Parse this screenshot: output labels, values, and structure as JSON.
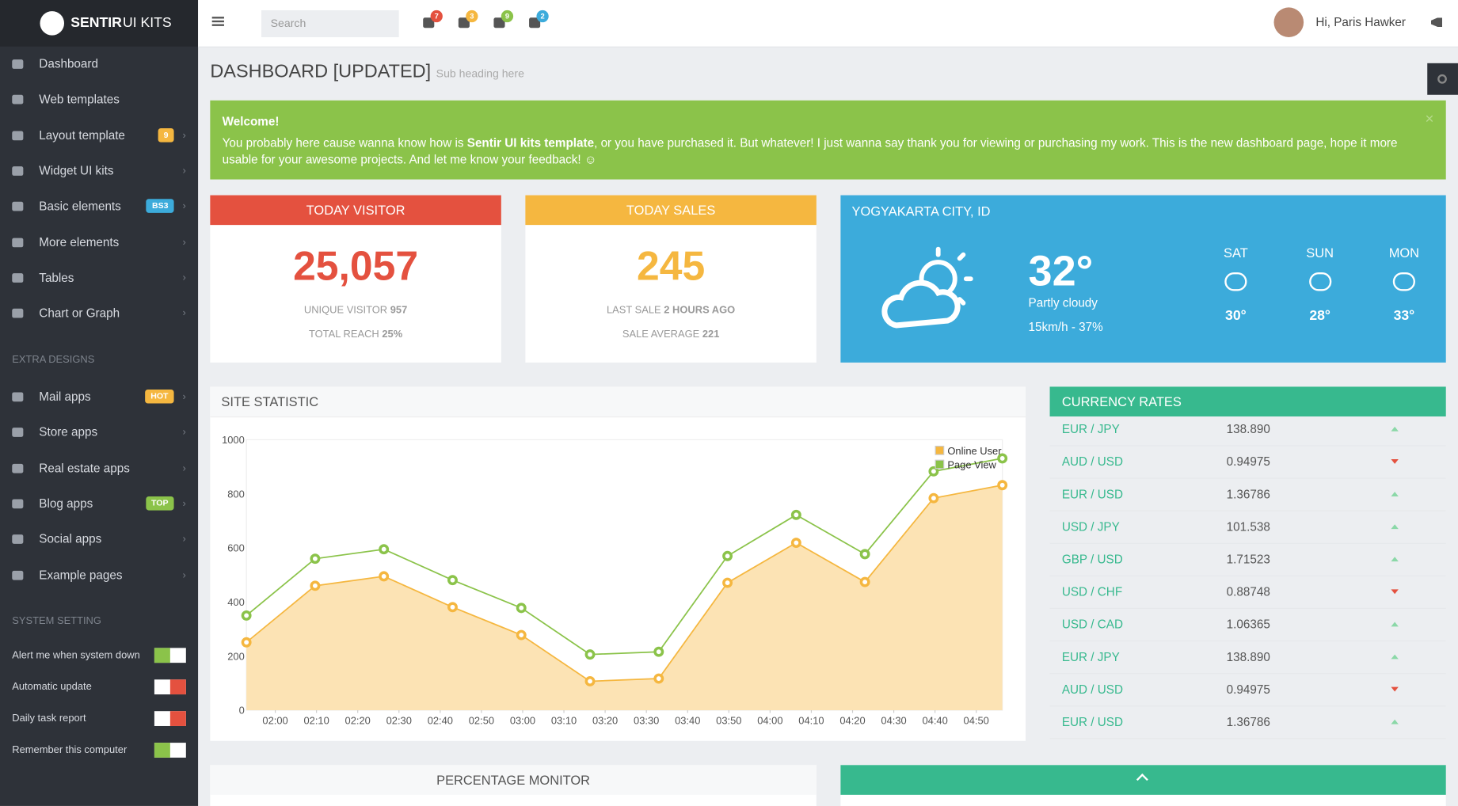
{
  "sidebar": {
    "brand_bold": "SENTIR",
    "brand_light": "UI KITS",
    "menu": [
      {
        "label": "Dashboard",
        "arrow": false
      },
      {
        "label": "Web templates",
        "arrow": false
      },
      {
        "label": "Layout template",
        "badge": "9",
        "badge_color": "#f5b740",
        "arrow": true
      },
      {
        "label": "Widget UI kits",
        "arrow": true
      },
      {
        "label": "Basic elements",
        "badge": "BS3",
        "badge_color": "#3cabdb",
        "arrow": true
      },
      {
        "label": "More elements",
        "arrow": true
      },
      {
        "label": "Tables",
        "arrow": true
      },
      {
        "label": "Chart or Graph",
        "arrow": true
      }
    ],
    "extra_heading": "EXTRA DESIGNS",
    "extra_menu": [
      {
        "label": "Mail apps",
        "badge": "HOT",
        "badge_color": "#f5b740",
        "arrow": true
      },
      {
        "label": "Store apps",
        "arrow": true
      },
      {
        "label": "Real estate apps",
        "arrow": true
      },
      {
        "label": "Blog apps",
        "badge": "TOP",
        "badge_color": "#8bc34a",
        "arrow": true
      },
      {
        "label": "Social apps",
        "arrow": true
      },
      {
        "label": "Example pages",
        "arrow": true
      }
    ],
    "settings_heading": "SYSTEM SETTING",
    "settings": [
      {
        "label": "Alert me when system down",
        "on": true
      },
      {
        "label": "Automatic update",
        "on": false
      },
      {
        "label": "Daily task report",
        "on": false
      },
      {
        "label": "Remember this computer",
        "on": true
      }
    ]
  },
  "header": {
    "search_placeholder": "Search",
    "notifications": [
      {
        "count": "7",
        "color": "#e4513f"
      },
      {
        "count": "3",
        "color": "#f5b740"
      },
      {
        "count": "9",
        "color": "#8bc34a"
      },
      {
        "count": "2",
        "color": "#3cabdb"
      }
    ],
    "greeting": "Hi, Paris Hawker"
  },
  "page": {
    "title": "DASHBOARD [UPDATED]",
    "subtitle": "Sub heading here"
  },
  "alert": {
    "heading": "Welcome!",
    "text_before": "You probably here cause wanna know how is ",
    "text_bold": "Sentir UI kits template",
    "text_after": ", or you have purchased it. But whatever! I just wanna say thank you for viewing or purchasing my work. This is the new dashboard page, hope it more usable for your awesome projects. And let me know your feedback! ☺"
  },
  "visitor": {
    "title": "TODAY VISITOR",
    "value": "25,057",
    "line1_label": "UNIQUE VISITOR",
    "line1_value": "957",
    "line2_label": "TOTAL REACH",
    "line2_value": "25%"
  },
  "sales": {
    "title": "TODAY SALES",
    "value": "245",
    "line1_label": "LAST SALE",
    "line1_value": "2 HOURS AGO",
    "line2_label": "SALE AVERAGE",
    "line2_value": "221"
  },
  "weather": {
    "title": "YOGYAKARTA CITY, ID",
    "temp": "32°",
    "condition": "Partly cloudy",
    "wind": "15km/h - 37%",
    "forecast": [
      {
        "day": "SAT",
        "temp": "30°"
      },
      {
        "day": "SUN",
        "temp": "28°"
      },
      {
        "day": "MON",
        "temp": "33°"
      }
    ]
  },
  "currency": {
    "title": "CURRENCY RATES",
    "rows": [
      {
        "pair": "EUR / JPY",
        "rate": "138.890",
        "trend": "up"
      },
      {
        "pair": "AUD / USD",
        "rate": "0.94975",
        "trend": "down"
      },
      {
        "pair": "EUR / USD",
        "rate": "1.36786",
        "trend": "up"
      },
      {
        "pair": "USD / JPY",
        "rate": "101.538",
        "trend": "up"
      },
      {
        "pair": "GBP / USD",
        "rate": "1.71523",
        "trend": "up"
      },
      {
        "pair": "USD / CHF",
        "rate": "0.88748",
        "trend": "down"
      },
      {
        "pair": "USD / CAD",
        "rate": "1.06365",
        "trend": "up"
      },
      {
        "pair": "EUR / JPY",
        "rate": "138.890",
        "trend": "up"
      },
      {
        "pair": "AUD / USD",
        "rate": "0.94975",
        "trend": "down"
      },
      {
        "pair": "EUR / USD",
        "rate": "1.36786",
        "trend": "up"
      }
    ]
  },
  "percentage_monitor": {
    "title": "PERCENTAGE MONITOR"
  },
  "chart_data": {
    "type": "line",
    "title": "SITE STATISTIC",
    "x": [
      0,
      1,
      2,
      3,
      4,
      5,
      6,
      7,
      8,
      9,
      10,
      11
    ],
    "xlim": [
      0,
      11
    ],
    "xticks": [
      {
        "value": 0.42,
        "label": "02:00"
      },
      {
        "value": 1.02,
        "label": "02:10"
      },
      {
        "value": 1.62,
        "label": "02:20"
      },
      {
        "value": 2.22,
        "label": "02:30"
      },
      {
        "value": 2.82,
        "label": "02:40"
      },
      {
        "value": 3.42,
        "label": "02:50"
      },
      {
        "value": 4.02,
        "label": "03:00"
      },
      {
        "value": 4.62,
        "label": "03:10"
      },
      {
        "value": 5.22,
        "label": "03:20"
      },
      {
        "value": 5.82,
        "label": "03:30"
      },
      {
        "value": 6.42,
        "label": "03:40"
      },
      {
        "value": 7.02,
        "label": "03:50"
      },
      {
        "value": 7.62,
        "label": "04:00"
      },
      {
        "value": 8.22,
        "label": "04:10"
      },
      {
        "value": 8.82,
        "label": "04:20"
      },
      {
        "value": 9.42,
        "label": "04:30"
      },
      {
        "value": 10.02,
        "label": "04:40"
      },
      {
        "value": 10.62,
        "label": "04:50"
      }
    ],
    "ylim": [
      0,
      1000
    ],
    "yticks": [
      0,
      200,
      400,
      600,
      800,
      1000
    ],
    "legend": "upper right",
    "series": [
      {
        "name": "Online User",
        "color": "#f5b740",
        "fill": "#fce3b4",
        "values": [
          251,
          460,
          495,
          381,
          278,
          107,
          117,
          471,
          619,
          474,
          784,
          832
        ]
      },
      {
        "name": "Page View",
        "color": "#8bc34a",
        "values": [
          350,
          560,
          595,
          481,
          378,
          206,
          216,
          570,
          722,
          577,
          883,
          931
        ]
      }
    ]
  }
}
